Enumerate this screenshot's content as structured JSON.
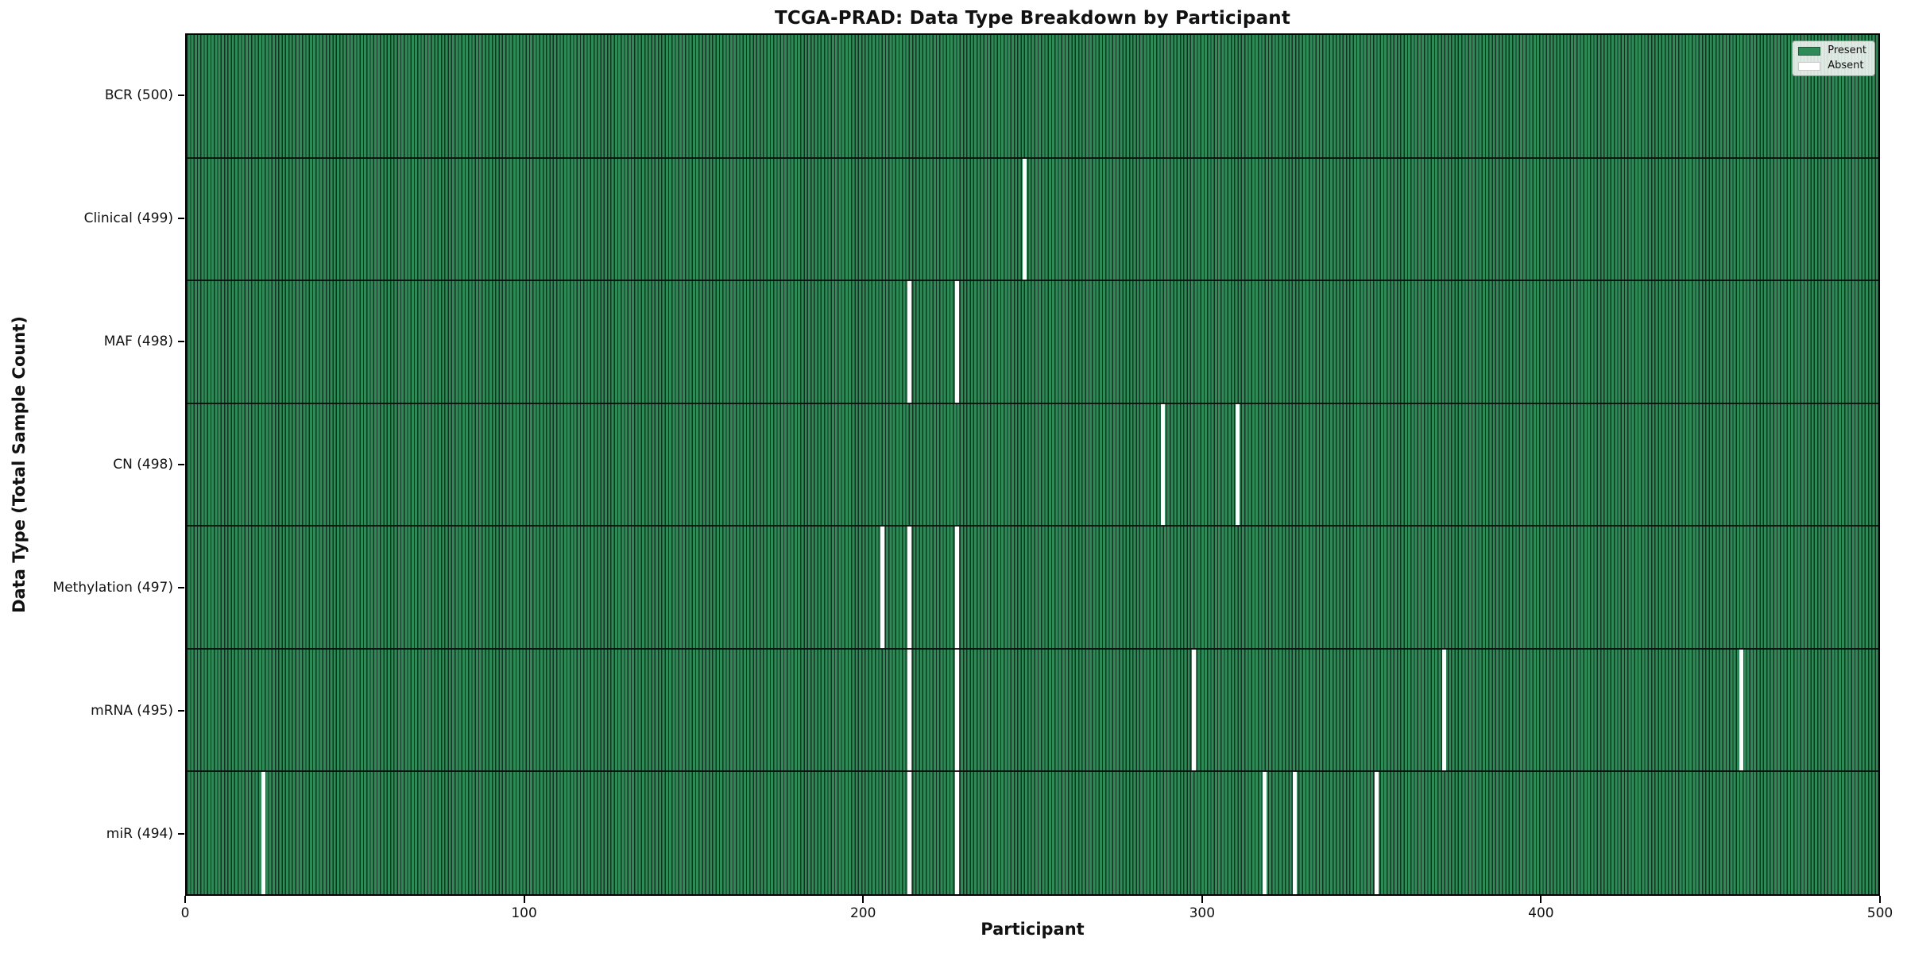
{
  "figure": {
    "title": "TCGA-PRAD: Data Type Breakdown by Participant",
    "xlabel": "Participant",
    "ylabel": "Data Type (Total Sample Count)"
  },
  "chart_data": {
    "type": "heatmap",
    "title": "TCGA-PRAD: Data Type Breakdown by Participant",
    "xlabel": "Participant",
    "ylabel": "Data Type (Total Sample Count)",
    "xlim": [
      0,
      500
    ],
    "x_ticks": [
      0,
      100,
      200,
      300,
      400,
      500
    ],
    "n_participants": 500,
    "grid": false,
    "legend_position": "upper right",
    "legend": [
      {
        "label": "Present",
        "color": "#2e8b57"
      },
      {
        "label": "Absent",
        "color": "#ffffff"
      }
    ],
    "rows": [
      {
        "data_type": "BCR",
        "label": "BCR (500)",
        "present_count": 500,
        "absent_participants": []
      },
      {
        "data_type": "Clinical",
        "label": "Clinical (499)",
        "present_count": 499,
        "absent_participants": [
          247
        ]
      },
      {
        "data_type": "MAF",
        "label": "MAF (498)",
        "present_count": 498,
        "absent_participants": [
          213,
          227
        ]
      },
      {
        "data_type": "CN",
        "label": "CN (498)",
        "present_count": 498,
        "absent_participants": [
          288,
          310
        ]
      },
      {
        "data_type": "Methylation",
        "label": "Methylation (497)",
        "present_count": 497,
        "absent_participants": [
          205,
          213,
          227
        ]
      },
      {
        "data_type": "mRNA",
        "label": "mRNA (495)",
        "present_count": 495,
        "absent_participants": [
          213,
          227,
          297,
          371,
          459
        ]
      },
      {
        "data_type": "miR",
        "label": "miR (494)",
        "present_count": 494,
        "absent_participants": [
          22,
          213,
          227,
          318,
          327,
          351
        ]
      }
    ],
    "colors": {
      "present": "#2e8b57",
      "absent": "#ffffff",
      "cell_edge": "#11331f",
      "row_divider": "#0c0c0c",
      "spine": "#000000"
    }
  }
}
